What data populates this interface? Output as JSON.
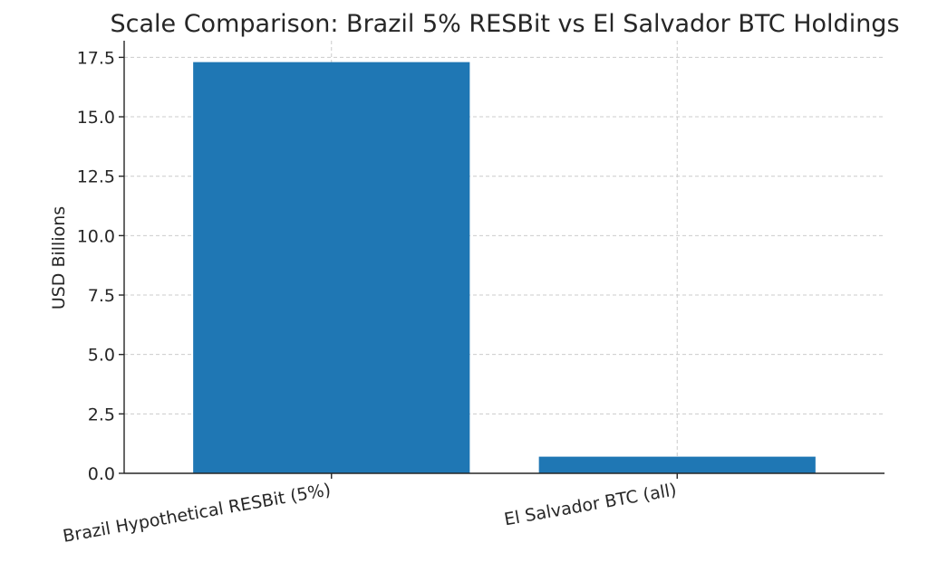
{
  "chart_data": {
    "type": "bar",
    "title": "Scale Comparison: Brazil 5% RESBit vs El Salvador BTC Holdings",
    "xlabel": "",
    "ylabel": "USD Billions",
    "categories": [
      "Brazil Hypothetical RESBit (5%)",
      "El Salvador BTC (all)"
    ],
    "values": [
      17.3,
      0.7
    ],
    "ylim": [
      0,
      18.2
    ],
    "yticks": [
      "0.0",
      "2.5",
      "5.0",
      "7.5",
      "10.0",
      "12.5",
      "15.0",
      "17.5"
    ],
    "bar_color": "#1f77b4",
    "grid": true
  }
}
